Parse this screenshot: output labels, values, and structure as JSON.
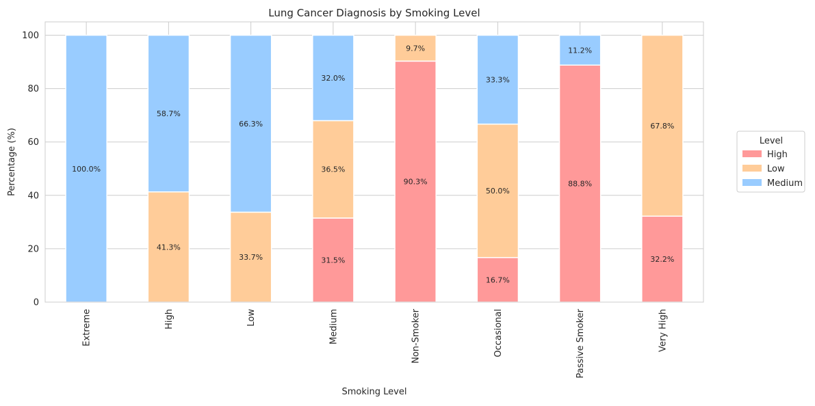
{
  "chart_data": {
    "type": "bar",
    "stacked": true,
    "title": "Lung Cancer Diagnosis by Smoking Level",
    "xlabel": "Smoking Level",
    "ylabel": "Percentage (%)",
    "ylim": [
      0,
      105
    ],
    "yticks": [
      0,
      20,
      40,
      60,
      80,
      100
    ],
    "grid": true,
    "categories": [
      "Extreme",
      "High",
      "Low",
      "Medium",
      "Non-Smoker",
      "Occasional",
      "Passive Smoker",
      "Very High"
    ],
    "series": [
      {
        "name": "High",
        "color": "#ff9999",
        "values": [
          0,
          0,
          0,
          31.5,
          90.3,
          16.7,
          88.8,
          32.2
        ]
      },
      {
        "name": "Low",
        "color": "#ffcc99",
        "values": [
          0,
          41.3,
          33.7,
          36.5,
          9.7,
          50.0,
          0,
          67.8
        ]
      },
      {
        "name": "Medium",
        "color": "#99ccff",
        "values": [
          100.0,
          58.7,
          66.3,
          32.0,
          0,
          33.3,
          11.2,
          0
        ]
      }
    ],
    "legend": {
      "title": "Level",
      "position": "right"
    }
  }
}
